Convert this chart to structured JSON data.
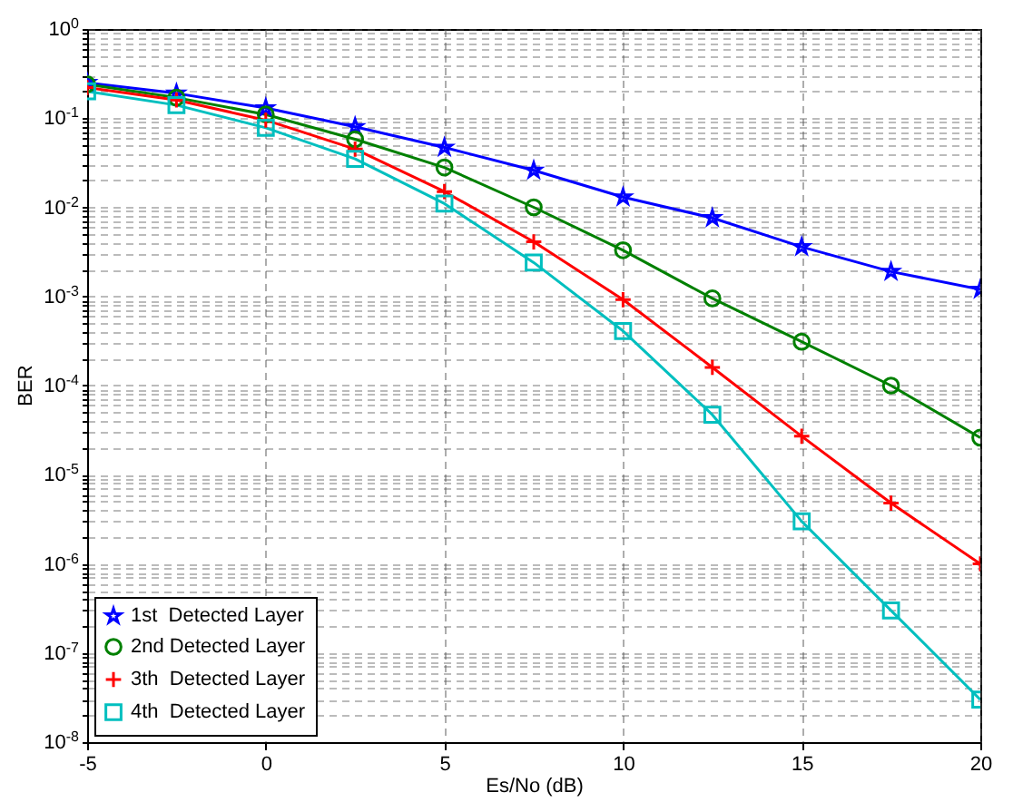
{
  "chart_data": {
    "type": "line",
    "xlabel": "Es/No (dB)",
    "ylabel": "BER",
    "log": true,
    "grid": true,
    "legend": "bottom left",
    "xlim": [
      -5,
      20
    ],
    "xticks": [
      -5,
      0,
      5,
      10,
      15,
      20
    ],
    "ylim": [
      1e-08,
      1
    ],
    "yticks": [
      {
        "value": 1e-08,
        "label": "10$^{-8}$"
      },
      {
        "value": 2e-08,
        "label": null
      },
      {
        "value": 3e-08,
        "label": null
      },
      {
        "value": 4e-08,
        "label": null
      },
      {
        "value": 5e-08,
        "label": null
      },
      {
        "value": 6e-08,
        "label": null
      },
      {
        "value": 7e-08,
        "label": null
      },
      {
        "value": 8e-08,
        "label": null
      },
      {
        "value": 9e-08,
        "label": null
      },
      {
        "value": 1e-07,
        "label": "10$^{-7}$"
      },
      {
        "value": 2e-07,
        "label": null
      },
      {
        "value": 3e-07,
        "label": null
      },
      {
        "value": 4e-07,
        "label": null
      },
      {
        "value": 5e-07,
        "label": null
      },
      {
        "value": 6e-07,
        "label": null
      },
      {
        "value": 7e-07,
        "label": null
      },
      {
        "value": 8e-07,
        "label": null
      },
      {
        "value": 9e-07,
        "label": null
      },
      {
        "value": 1e-06,
        "label": "10$^{-6}$"
      },
      {
        "value": 2e-06,
        "label": null
      },
      {
        "value": 3e-06,
        "label": null
      },
      {
        "value": 4e-06,
        "label": null
      },
      {
        "value": 5e-06,
        "label": null
      },
      {
        "value": 6e-06,
        "label": null
      },
      {
        "value": 7e-06,
        "label": null
      },
      {
        "value": 8e-06,
        "label": null
      },
      {
        "value": 9e-06,
        "label": null
      },
      {
        "value": 1e-05,
        "label": "10$^{-5}$"
      },
      {
        "value": 2e-05,
        "label": null
      },
      {
        "value": 3e-05,
        "label": null
      },
      {
        "value": 4e-05,
        "label": null
      },
      {
        "value": 5e-05,
        "label": null
      },
      {
        "value": 6e-05,
        "label": null
      },
      {
        "value": 7e-05,
        "label": null
      },
      {
        "value": 8e-05,
        "label": null
      },
      {
        "value": 9e-05,
        "label": null
      },
      {
        "value": 0.0001,
        "label": "10$^{-4}$"
      },
      {
        "value": 0.0002,
        "label": null
      },
      {
        "value": 0.0003,
        "label": null
      },
      {
        "value": 0.0004,
        "label": null
      },
      {
        "value": 0.0005,
        "label": null
      },
      {
        "value": 0.0006,
        "label": null
      },
      {
        "value": 0.0007,
        "label": null
      },
      {
        "value": 0.0008,
        "label": null
      },
      {
        "value": 0.0009,
        "label": null
      },
      {
        "value": 0.001,
        "label": "10$^{-3}$"
      },
      {
        "value": 0.002,
        "label": null
      },
      {
        "value": 0.003,
        "label": null
      },
      {
        "value": 0.004,
        "label": null
      },
      {
        "value": 0.005,
        "label": null
      },
      {
        "value": 0.006,
        "label": null
      },
      {
        "value": 0.007,
        "label": null
      },
      {
        "value": 0.008,
        "label": null
      },
      {
        "value": 0.009,
        "label": null
      },
      {
        "value": 0.01,
        "label": "10$^{-2}$"
      },
      {
        "value": 0.02,
        "label": null
      },
      {
        "value": 0.03,
        "label": null
      },
      {
        "value": 0.04,
        "label": null
      },
      {
        "value": 0.05,
        "label": null
      },
      {
        "value": 0.06,
        "label": null
      },
      {
        "value": 0.07,
        "label": null
      },
      {
        "value": 0.08,
        "label": null
      },
      {
        "value": 0.09,
        "label": null
      },
      {
        "value": 0.1,
        "label": "10$^{-1}$"
      },
      {
        "value": 0.2,
        "label": null
      },
      {
        "value": 0.3,
        "label": null
      },
      {
        "value": 0.4,
        "label": null
      },
      {
        "value": 0.5,
        "label": null
      },
      {
        "value": 0.6,
        "label": null
      },
      {
        "value": 0.7,
        "label": null
      },
      {
        "value": 0.8,
        "label": null
      },
      {
        "value": 0.9,
        "label": null
      },
      {
        "value": 1,
        "label": "10$^{0}$"
      }
    ],
    "x": [
      -5,
      -2.5,
      0,
      2.5,
      5,
      7.5,
      10,
      12.5,
      15,
      17.5,
      20
    ],
    "series": [
      {
        "name": "1st  Detected Layer",
        "color": "#0000ff",
        "marker": "star",
        "values": [
          0.25,
          0.19,
          0.13,
          0.08,
          0.047,
          0.026,
          0.013,
          0.0076,
          0.0036,
          0.0019,
          0.0012
        ]
      },
      {
        "name": "2nd Detected Layer",
        "color": "#008000",
        "marker": "circle",
        "values": [
          0.24,
          0.17,
          0.11,
          0.058,
          0.028,
          0.01,
          0.0033,
          0.00095,
          0.00031,
          0.0001,
          2.6e-05
        ]
      },
      {
        "name": "3th  Detected Layer",
        "color": "#ff0000",
        "marker": "cross",
        "values": [
          0.22,
          0.16,
          0.095,
          0.045,
          0.015,
          0.0041,
          0.00092,
          0.00016,
          2.7e-05,
          4.8e-06,
          1e-06
        ]
      },
      {
        "name": "4th  Detected Layer",
        "color": "#00bfbf",
        "marker": "square",
        "values": [
          0.2,
          0.14,
          0.078,
          0.035,
          0.011,
          0.0024,
          0.00041,
          4.7e-05,
          3e-06,
          3e-07,
          3e-08
        ]
      }
    ]
  }
}
